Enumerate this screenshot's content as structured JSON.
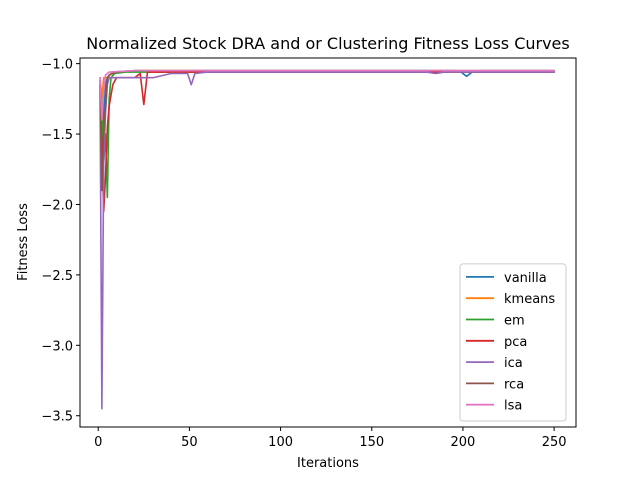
{
  "chart_data": {
    "type": "line",
    "title": "Normalized Stock DRA and or Clustering Fitness Loss Curves",
    "xlabel": "Iterations",
    "ylabel": "Fitness Loss",
    "xlim": [
      -10,
      262
    ],
    "ylim": [
      -3.58,
      -0.96
    ],
    "xticks": [
      0,
      50,
      100,
      150,
      200,
      250
    ],
    "yticks": [
      -3.5,
      -3.0,
      -2.5,
      -2.0,
      -1.5,
      -1.0
    ],
    "ytick_labels": [
      "−3.5",
      "−3.0",
      "−2.5",
      "−2.0",
      "−1.5",
      "−1.0"
    ],
    "grid": false,
    "legend_position": "lower right",
    "series": [
      {
        "name": "vanilla",
        "color": "#1f77b4",
        "points": [
          [
            1,
            -1.12
          ],
          [
            2,
            -1.6
          ],
          [
            3,
            -1.35
          ],
          [
            4,
            -1.15
          ],
          [
            5,
            -1.1
          ],
          [
            8,
            -1.06
          ],
          [
            20,
            -1.05
          ],
          [
            100,
            -1.05
          ],
          [
            195,
            -1.05
          ],
          [
            199,
            -1.06
          ],
          [
            202,
            -1.09
          ],
          [
            205,
            -1.06
          ],
          [
            210,
            -1.05
          ],
          [
            250,
            -1.05
          ]
        ]
      },
      {
        "name": "kmeans",
        "color": "#ff7f0e",
        "points": [
          [
            1,
            -1.1
          ],
          [
            2,
            -1.25
          ],
          [
            3,
            -1.1
          ],
          [
            5,
            -1.1
          ],
          [
            8,
            -1.06
          ],
          [
            20,
            -1.05
          ],
          [
            250,
            -1.05
          ]
        ]
      },
      {
        "name": "em",
        "color": "#2ca02c",
        "points": [
          [
            1,
            -1.12
          ],
          [
            2,
            -1.3
          ],
          [
            3,
            -1.7
          ],
          [
            4,
            -1.5
          ],
          [
            5,
            -1.95
          ],
          [
            6,
            -1.25
          ],
          [
            7,
            -1.1
          ],
          [
            9,
            -1.07
          ],
          [
            15,
            -1.06
          ],
          [
            250,
            -1.06
          ]
        ]
      },
      {
        "name": "pca",
        "color": "#d62728",
        "points": [
          [
            1,
            -1.15
          ],
          [
            2,
            -1.6
          ],
          [
            3,
            -2.05
          ],
          [
            4,
            -1.8
          ],
          [
            5,
            -1.45
          ],
          [
            6,
            -1.3
          ],
          [
            8,
            -1.15
          ],
          [
            10,
            -1.1
          ],
          [
            20,
            -1.1
          ],
          [
            23,
            -1.07
          ],
          [
            25,
            -1.29
          ],
          [
            27,
            -1.06
          ],
          [
            35,
            -1.06
          ],
          [
            250,
            -1.06
          ]
        ]
      },
      {
        "name": "ica",
        "color": "#9467bd",
        "points": [
          [
            1,
            -1.2
          ],
          [
            2,
            -3.45
          ],
          [
            3,
            -1.7
          ],
          [
            4,
            -1.35
          ],
          [
            5,
            -1.15
          ],
          [
            6,
            -1.1
          ],
          [
            8,
            -1.1
          ],
          [
            30,
            -1.1
          ],
          [
            40,
            -1.07
          ],
          [
            49,
            -1.07
          ],
          [
            51,
            -1.15
          ],
          [
            53,
            -1.07
          ],
          [
            60,
            -1.06
          ],
          [
            100,
            -1.06
          ],
          [
            180,
            -1.06
          ],
          [
            185,
            -1.07
          ],
          [
            190,
            -1.06
          ],
          [
            250,
            -1.06
          ]
        ]
      },
      {
        "name": "rca",
        "color": "#8c564b",
        "points": [
          [
            1,
            -1.15
          ],
          [
            2,
            -1.9
          ],
          [
            3,
            -1.5
          ],
          [
            4,
            -1.3
          ],
          [
            5,
            -1.1
          ],
          [
            6,
            -1.08
          ],
          [
            10,
            -1.06
          ],
          [
            20,
            -1.05
          ],
          [
            250,
            -1.05
          ]
        ]
      },
      {
        "name": "lsa",
        "color": "#e377c2",
        "points": [
          [
            1,
            -1.1
          ],
          [
            2,
            -1.4
          ],
          [
            3,
            -1.2
          ],
          [
            4,
            -1.08
          ],
          [
            6,
            -1.06
          ],
          [
            20,
            -1.05
          ],
          [
            250,
            -1.05
          ]
        ]
      }
    ]
  }
}
